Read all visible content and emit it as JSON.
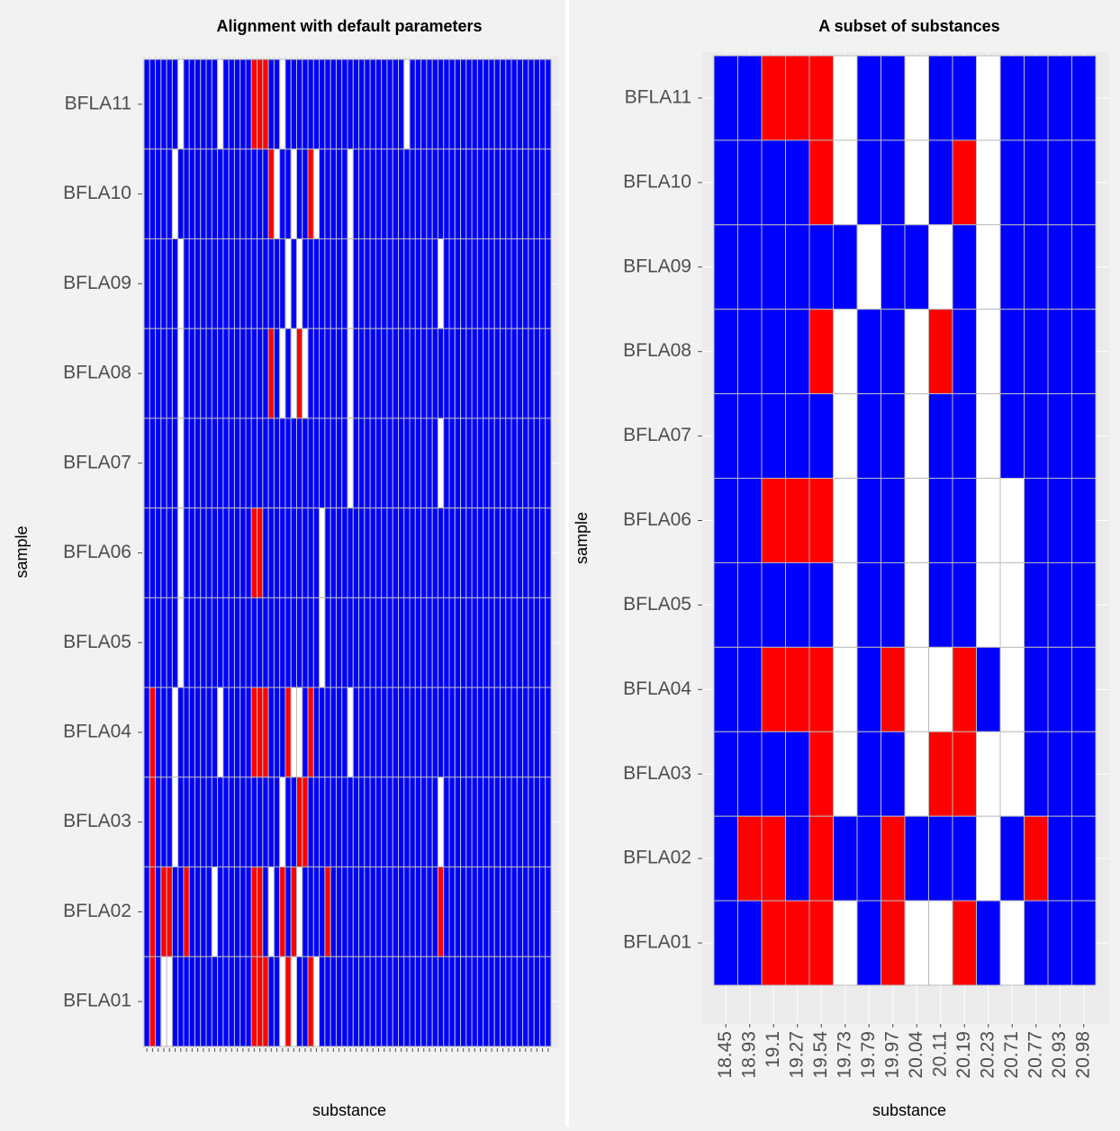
{
  "chart_data": [
    {
      "type": "heatmap",
      "title": "Alignment with default parameters",
      "xlabel": "substance",
      "ylabel": "sample",
      "categories": [
        null,
        null,
        null,
        null,
        null,
        null,
        null,
        null,
        null,
        null,
        null,
        null,
        null,
        null,
        null,
        null,
        null,
        null,
        null,
        null,
        null,
        null,
        null,
        null,
        null,
        null,
        null,
        null,
        null,
        null,
        null,
        null,
        null,
        null,
        null,
        null,
        null,
        null,
        null,
        null,
        null,
        null,
        null,
        null,
        null,
        null,
        null,
        null,
        null,
        null,
        null,
        null,
        null,
        null,
        null,
        null,
        null,
        null,
        null,
        null,
        null,
        null,
        null,
        null,
        null,
        null,
        null,
        null,
        null,
        null,
        null,
        null
      ],
      "rows": [
        "BFLA11",
        "BFLA10",
        "BFLA09",
        "BFLA08",
        "BFLA07",
        "BFLA06",
        "BFLA05",
        "BFLA04",
        "BFLA03",
        "BFLA02",
        "BFLA01"
      ],
      "colors": [
        "#ffffff",
        "#0000ff",
        "#ff0000"
      ],
      "grid": true,
      "z": [
        [
          1,
          1,
          1,
          1,
          1,
          1,
          0,
          1,
          1,
          1,
          1,
          1,
          1,
          0,
          1,
          1,
          1,
          1,
          1,
          2,
          2,
          2,
          1,
          1,
          0,
          1,
          1,
          1,
          1,
          1,
          1,
          1,
          1,
          1,
          1,
          1,
          1,
          1,
          1,
          1,
          1,
          1,
          1,
          1,
          1,
          1,
          0,
          1,
          1,
          1,
          1,
          1,
          1,
          1,
          1,
          1,
          1,
          1,
          1,
          1,
          1,
          1,
          1,
          1,
          1,
          1,
          1,
          1,
          1,
          1,
          1,
          1
        ],
        [
          1,
          1,
          1,
          1,
          1,
          0,
          1,
          1,
          1,
          1,
          1,
          1,
          1,
          1,
          1,
          1,
          1,
          1,
          1,
          1,
          1,
          1,
          2,
          0,
          1,
          1,
          0,
          1,
          1,
          2,
          0,
          1,
          1,
          1,
          1,
          1,
          0,
          1,
          1,
          1,
          1,
          1,
          1,
          1,
          1,
          1,
          1,
          1,
          1,
          1,
          1,
          1,
          1,
          1,
          1,
          1,
          1,
          1,
          1,
          1,
          1,
          1,
          1,
          1,
          1,
          1,
          1,
          1,
          1,
          1,
          1,
          1
        ],
        [
          1,
          1,
          1,
          1,
          1,
          1,
          0,
          1,
          1,
          1,
          1,
          1,
          1,
          1,
          1,
          1,
          1,
          1,
          1,
          1,
          1,
          1,
          1,
          1,
          1,
          0,
          1,
          0,
          1,
          1,
          1,
          1,
          1,
          1,
          1,
          1,
          0,
          1,
          1,
          1,
          1,
          1,
          1,
          1,
          1,
          1,
          1,
          1,
          1,
          1,
          1,
          1,
          0,
          1,
          1,
          1,
          1,
          1,
          1,
          1,
          1,
          1,
          1,
          1,
          1,
          1,
          1,
          1,
          1,
          1,
          1,
          1
        ],
        [
          1,
          1,
          1,
          1,
          1,
          1,
          0,
          1,
          1,
          1,
          1,
          1,
          1,
          1,
          1,
          1,
          1,
          1,
          1,
          1,
          1,
          1,
          2,
          1,
          0,
          1,
          0,
          2,
          0,
          1,
          1,
          1,
          1,
          1,
          1,
          1,
          0,
          1,
          1,
          1,
          1,
          1,
          1,
          1,
          1,
          1,
          1,
          1,
          1,
          1,
          1,
          1,
          1,
          1,
          1,
          1,
          1,
          1,
          1,
          1,
          1,
          1,
          1,
          1,
          1,
          1,
          1,
          1,
          1,
          1,
          1,
          1
        ],
        [
          1,
          1,
          1,
          1,
          1,
          1,
          0,
          1,
          1,
          1,
          1,
          1,
          1,
          1,
          1,
          1,
          1,
          1,
          1,
          1,
          1,
          1,
          1,
          1,
          1,
          1,
          1,
          1,
          1,
          1,
          1,
          1,
          1,
          1,
          1,
          1,
          0,
          1,
          1,
          1,
          1,
          1,
          1,
          1,
          1,
          1,
          1,
          1,
          1,
          1,
          1,
          1,
          0,
          1,
          1,
          1,
          1,
          1,
          1,
          1,
          1,
          1,
          1,
          1,
          1,
          1,
          1,
          1,
          1,
          1,
          1,
          1
        ],
        [
          1,
          1,
          1,
          1,
          1,
          1,
          0,
          1,
          1,
          1,
          1,
          1,
          1,
          1,
          1,
          1,
          1,
          1,
          1,
          2,
          2,
          1,
          1,
          1,
          1,
          1,
          1,
          1,
          1,
          1,
          1,
          0,
          1,
          1,
          1,
          1,
          1,
          1,
          1,
          1,
          1,
          1,
          1,
          1,
          1,
          1,
          1,
          1,
          1,
          1,
          1,
          1,
          1,
          1,
          1,
          1,
          1,
          1,
          1,
          1,
          1,
          1,
          1,
          1,
          1,
          1,
          1,
          1,
          1,
          1,
          1,
          1
        ],
        [
          1,
          1,
          1,
          1,
          1,
          1,
          0,
          1,
          1,
          1,
          1,
          1,
          1,
          1,
          1,
          1,
          1,
          1,
          1,
          1,
          1,
          1,
          1,
          1,
          1,
          1,
          1,
          1,
          1,
          1,
          1,
          0,
          1,
          1,
          1,
          1,
          1,
          1,
          1,
          1,
          1,
          1,
          1,
          1,
          1,
          1,
          1,
          1,
          1,
          1,
          1,
          1,
          1,
          1,
          1,
          1,
          1,
          1,
          1,
          1,
          1,
          1,
          1,
          1,
          1,
          1,
          1,
          1,
          1,
          1,
          1,
          1
        ],
        [
          1,
          2,
          1,
          1,
          1,
          0,
          1,
          1,
          1,
          1,
          1,
          1,
          1,
          0,
          1,
          1,
          1,
          1,
          1,
          2,
          2,
          2,
          1,
          1,
          1,
          2,
          0,
          0,
          1,
          2,
          1,
          1,
          1,
          1,
          1,
          1,
          0,
          1,
          1,
          1,
          1,
          1,
          1,
          1,
          1,
          1,
          1,
          1,
          1,
          1,
          1,
          1,
          1,
          1,
          1,
          1,
          1,
          1,
          1,
          1,
          1,
          1,
          1,
          1,
          1,
          1,
          1,
          1,
          1,
          1,
          1,
          1
        ],
        [
          1,
          2,
          1,
          1,
          1,
          0,
          1,
          1,
          1,
          1,
          1,
          1,
          1,
          1,
          1,
          1,
          1,
          1,
          1,
          1,
          1,
          1,
          1,
          1,
          0,
          1,
          1,
          2,
          2,
          1,
          1,
          1,
          1,
          1,
          1,
          1,
          1,
          1,
          1,
          1,
          1,
          1,
          1,
          1,
          1,
          1,
          1,
          1,
          1,
          1,
          1,
          1,
          0,
          1,
          1,
          1,
          1,
          1,
          1,
          1,
          1,
          1,
          1,
          1,
          1,
          1,
          1,
          1,
          1,
          1,
          1,
          1
        ],
        [
          1,
          2,
          1,
          2,
          2,
          1,
          1,
          2,
          1,
          1,
          1,
          1,
          0,
          1,
          1,
          1,
          1,
          1,
          1,
          2,
          2,
          1,
          0,
          1,
          2,
          1,
          2,
          0,
          1,
          1,
          1,
          1,
          2,
          1,
          1,
          1,
          1,
          1,
          1,
          1,
          1,
          1,
          1,
          1,
          1,
          1,
          1,
          1,
          1,
          1,
          1,
          1,
          2,
          1,
          1,
          1,
          1,
          1,
          1,
          1,
          1,
          1,
          1,
          1,
          1,
          1,
          1,
          1,
          1,
          1,
          1,
          1
        ],
        [
          1,
          2,
          1,
          0,
          0,
          1,
          1,
          1,
          1,
          1,
          1,
          1,
          1,
          1,
          1,
          1,
          1,
          1,
          1,
          2,
          2,
          2,
          1,
          1,
          0,
          2,
          0,
          1,
          1,
          2,
          0,
          1,
          1,
          1,
          1,
          1,
          1,
          1,
          1,
          1,
          1,
          1,
          1,
          1,
          1,
          1,
          1,
          1,
          1,
          1,
          1,
          1,
          1,
          1,
          1,
          1,
          1,
          1,
          1,
          1,
          1,
          1,
          1,
          1,
          1,
          1,
          1,
          1,
          1,
          1,
          1,
          1
        ]
      ]
    },
    {
      "type": "heatmap",
      "title": "A subset of substances",
      "xlabel": "substance",
      "ylabel": "sample",
      "categories": [
        "18.45",
        "18.93",
        "19.1",
        "19.27",
        "19.54",
        "19.73",
        "19.79",
        "19.97",
        "20.04",
        "20.11",
        "20.19",
        "20.23",
        "20.71",
        "20.77",
        "20.93",
        "20.98"
      ],
      "rows": [
        "BFLA11",
        "BFLA10",
        "BFLA09",
        "BFLA08",
        "BFLA07",
        "BFLA06",
        "BFLA05",
        "BFLA04",
        "BFLA03",
        "BFLA02",
        "BFLA01"
      ],
      "colors": [
        "#ffffff",
        "#0000ff",
        "#ff0000"
      ],
      "grid": true,
      "z": [
        [
          1,
          1,
          2,
          2,
          2,
          0,
          1,
          1,
          0,
          1,
          1,
          0,
          1,
          1,
          1,
          1
        ],
        [
          1,
          1,
          1,
          1,
          2,
          0,
          1,
          1,
          0,
          1,
          2,
          0,
          1,
          1,
          1,
          1
        ],
        [
          1,
          1,
          1,
          1,
          1,
          1,
          0,
          1,
          1,
          0,
          1,
          0,
          1,
          1,
          1,
          1
        ],
        [
          1,
          1,
          1,
          1,
          2,
          0,
          1,
          1,
          0,
          2,
          1,
          0,
          1,
          1,
          1,
          1
        ],
        [
          1,
          1,
          1,
          1,
          1,
          0,
          1,
          1,
          0,
          1,
          1,
          0,
          1,
          1,
          1,
          1
        ],
        [
          1,
          1,
          2,
          2,
          2,
          0,
          1,
          1,
          0,
          1,
          1,
          0,
          0,
          1,
          1,
          1
        ],
        [
          1,
          1,
          1,
          1,
          1,
          0,
          1,
          1,
          0,
          1,
          1,
          0,
          0,
          1,
          1,
          1
        ],
        [
          1,
          1,
          2,
          2,
          2,
          0,
          1,
          2,
          0,
          0,
          2,
          1,
          0,
          1,
          1,
          1
        ],
        [
          1,
          1,
          1,
          1,
          2,
          0,
          1,
          1,
          0,
          2,
          2,
          0,
          0,
          1,
          1,
          1
        ],
        [
          1,
          2,
          2,
          1,
          2,
          1,
          1,
          2,
          1,
          1,
          1,
          0,
          1,
          2,
          1,
          1
        ],
        [
          1,
          1,
          2,
          2,
          2,
          0,
          1,
          2,
          0,
          0,
          2,
          1,
          0,
          1,
          1,
          1
        ]
      ]
    }
  ]
}
